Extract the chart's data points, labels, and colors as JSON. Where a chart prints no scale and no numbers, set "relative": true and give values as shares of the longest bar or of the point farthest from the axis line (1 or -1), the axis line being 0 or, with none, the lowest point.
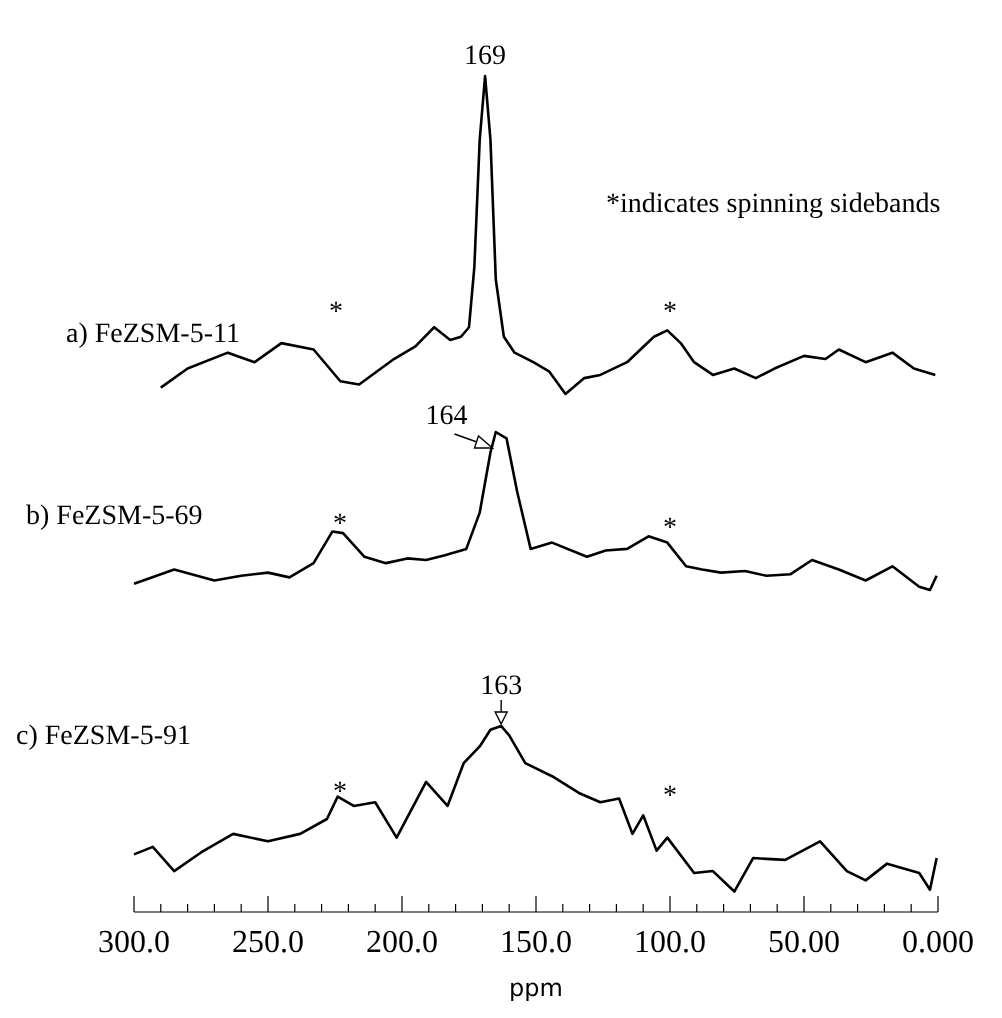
{
  "chart_data": [
    {
      "type": "line",
      "relative": true,
      "xlim": [
        300,
        0
      ],
      "tick_labels": false,
      "grid": false,
      "marker": "none",
      "line_style": "solid",
      "x": [
        290,
        280,
        265,
        255,
        245,
        233,
        223,
        216,
        203,
        195,
        188,
        182,
        178,
        175,
        173,
        171,
        169,
        167,
        165,
        162,
        158,
        151,
        145,
        139,
        132,
        126,
        116,
        106,
        101,
        96,
        91,
        84,
        76,
        68,
        61,
        50,
        42,
        37,
        27,
        17,
        9,
        1
      ],
      "series": [
        {
          "name": "a) FeZSM-5-11",
          "color": "#000000",
          "values": [
            0.02,
            0.08,
            0.13,
            0.1,
            0.16,
            0.14,
            0.04,
            0.03,
            0.11,
            0.15,
            0.21,
            0.17,
            0.18,
            0.21,
            0.4,
            0.8,
            1,
            0.8,
            0.36,
            0.18,
            0.13,
            0.1,
            0.07,
            0,
            0.05,
            0.06,
            0.1,
            0.18,
            0.2,
            0.16,
            0.1,
            0.06,
            0.08,
            0.05,
            0.08,
            0.12,
            0.11,
            0.14,
            0.1,
            0.13,
            0.08,
            0.06
          ]
        }
      ],
      "annotations": [
        {
          "text": "169",
          "x": 169,
          "y": 1
        },
        "*",
        "*",
        "*indicates spinning sidebands"
      ]
    },
    {
      "type": "line",
      "relative": true,
      "xlim": [
        300,
        0
      ],
      "tick_labels": false,
      "grid": false,
      "marker": "none",
      "line_style": "solid",
      "x": [
        300,
        285,
        270,
        260,
        250,
        242,
        233,
        226,
        222,
        214,
        206,
        198,
        191,
        184,
        176,
        171,
        167,
        165,
        161,
        157,
        152,
        144,
        131,
        124,
        116,
        108,
        101,
        94,
        88,
        81,
        72,
        64,
        55,
        47,
        37,
        27,
        17,
        7,
        3,
        0.5
      ],
      "series": [
        {
          "name": "b) FeZSM-5-69",
          "color": "#000000",
          "values": [
            0.04,
            0.13,
            0.06,
            0.09,
            0.11,
            0.08,
            0.17,
            0.37,
            0.36,
            0.21,
            0.17,
            0.2,
            0.19,
            0.22,
            0.26,
            0.49,
            0.87,
            1,
            0.96,
            0.62,
            0.26,
            0.3,
            0.21,
            0.25,
            0.26,
            0.34,
            0.3,
            0.15,
            0.13,
            0.11,
            0.12,
            0.09,
            0.1,
            0.19,
            0.13,
            0.06,
            0.15,
            0.02,
            0,
            0.09
          ]
        }
      ],
      "annotations": [
        {
          "text": "164",
          "x": 164,
          "y": 1
        },
        "*",
        "*"
      ]
    },
    {
      "type": "line",
      "relative": true,
      "xlim": [
        300,
        0
      ],
      "tick_labels": "x",
      "grid": false,
      "marker": "none",
      "line_style": "solid",
      "xlabel": "ppm",
      "xticks": [
        {
          "value": 300,
          "label": "300.0"
        },
        {
          "value": 290,
          "label": null
        },
        {
          "value": 280,
          "label": null
        },
        {
          "value": 270,
          "label": null
        },
        {
          "value": 260,
          "label": null
        },
        {
          "value": 250,
          "label": "250.0"
        },
        {
          "value": 240,
          "label": null
        },
        {
          "value": 230,
          "label": null
        },
        {
          "value": 220,
          "label": null
        },
        {
          "value": 210,
          "label": null
        },
        {
          "value": 200,
          "label": "200.0"
        },
        {
          "value": 190,
          "label": null
        },
        {
          "value": 180,
          "label": null
        },
        {
          "value": 170,
          "label": null
        },
        {
          "value": 160,
          "label": null
        },
        {
          "value": 150,
          "label": "150.0"
        },
        {
          "value": 140,
          "label": null
        },
        {
          "value": 130,
          "label": null
        },
        {
          "value": 120,
          "label": null
        },
        {
          "value": 110,
          "label": null
        },
        {
          "value": 100,
          "label": "100.0"
        },
        {
          "value": 90,
          "label": null
        },
        {
          "value": 80,
          "label": null
        },
        {
          "value": 70,
          "label": null
        },
        {
          "value": 60,
          "label": null
        },
        {
          "value": 50,
          "label": "50.00"
        },
        {
          "value": 40,
          "label": null
        },
        {
          "value": 30,
          "label": null
        },
        {
          "value": 20,
          "label": null
        },
        {
          "value": 10,
          "label": null
        },
        {
          "value": 0,
          "label": "0.000"
        }
      ],
      "x": [
        300,
        293,
        285,
        275,
        263,
        250,
        238,
        228,
        224,
        218,
        210,
        202,
        191,
        183,
        177,
        171,
        167,
        163,
        160,
        154,
        144,
        134,
        126,
        119,
        114,
        110,
        105,
        101,
        91,
        84,
        76,
        69,
        57,
        44,
        34,
        27,
        19,
        7,
        3,
        0.5
      ],
      "series": [
        {
          "name": "c) FeZSM-5-91",
          "color": "#000000",
          "values": [
            0.31,
            0.35,
            0.22,
            0.32,
            0.42,
            0.38,
            0.42,
            0.5,
            0.62,
            0.57,
            0.59,
            0.4,
            0.7,
            0.57,
            0.8,
            0.89,
            0.98,
            1,
            0.95,
            0.8,
            0.73,
            0.64,
            0.59,
            0.61,
            0.42,
            0.52,
            0.33,
            0.4,
            0.21,
            0.22,
            0.11,
            0.29,
            0.28,
            0.38,
            0.22,
            0.17,
            0.26,
            0.21,
            0.12,
            0.29
          ]
        }
      ],
      "annotations": [
        {
          "text": "163",
          "x": 163,
          "y": 1
        },
        "*",
        "*"
      ]
    }
  ]
}
